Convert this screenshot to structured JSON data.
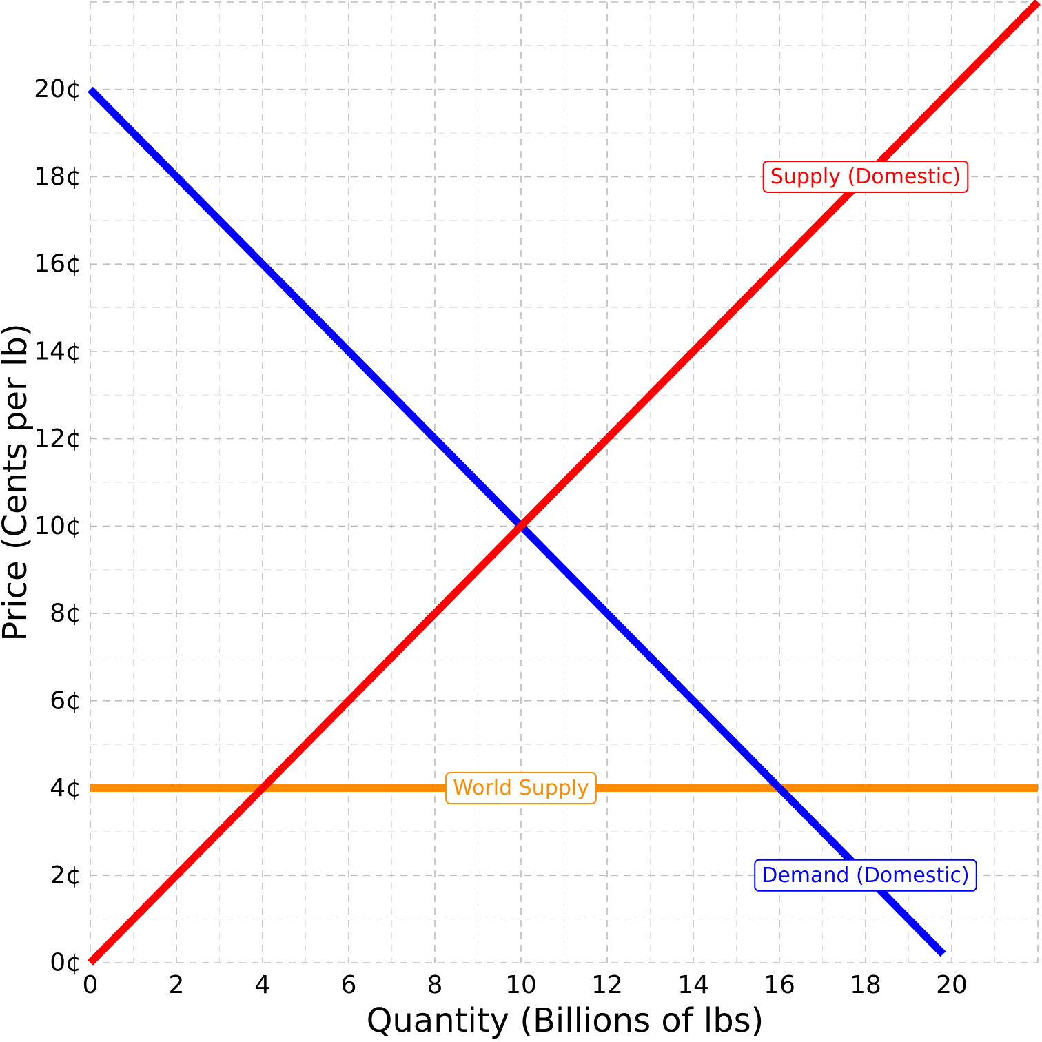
{
  "chart_data": {
    "type": "line",
    "xlabel": "Quantity (Billions of lbs)",
    "ylabel": "Price (Cents per lb)",
    "xlim": [
      0,
      22
    ],
    "ylim": [
      0,
      22
    ],
    "grid": true,
    "x_ticks": [
      0,
      2,
      4,
      6,
      8,
      10,
      12,
      14,
      16,
      18,
      20
    ],
    "x_tick_labels": [
      "0",
      "2",
      "4",
      "6",
      "8",
      "10",
      "12",
      "14",
      "16",
      "18",
      "20"
    ],
    "y_ticks": [
      0,
      2,
      4,
      6,
      8,
      10,
      12,
      14,
      16,
      18,
      20
    ],
    "y_tick_labels": [
      "0¢",
      "2¢",
      "4¢",
      "6¢",
      "8¢",
      "10¢",
      "12¢",
      "14¢",
      "16¢",
      "18¢",
      "20¢"
    ],
    "series": [
      {
        "name": "Demand (Domestic)",
        "color": "#0000ff",
        "x": [
          0,
          19.8
        ],
        "y": [
          20,
          0.2
        ],
        "label_at": [
          18,
          2
        ]
      },
      {
        "name": "Supply (Domestic)",
        "color": "#ff0000",
        "x": [
          0,
          22
        ],
        "y": [
          0,
          22
        ],
        "label_at": [
          18,
          18
        ]
      },
      {
        "name": "World Supply",
        "color": "#ff8c00",
        "x": [
          0,
          22
        ],
        "y": [
          4,
          4
        ],
        "label_at": [
          10,
          4
        ]
      }
    ]
  }
}
